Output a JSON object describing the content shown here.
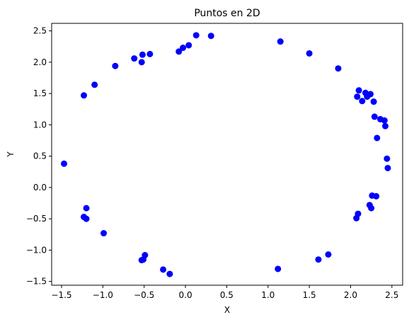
{
  "chart_data": {
    "type": "scatter",
    "title": "Puntos en 2D",
    "xlabel": "X",
    "ylabel": "Y",
    "xlim": [
      -1.62,
      2.63
    ],
    "ylim": [
      -1.56,
      2.62
    ],
    "xticks": [
      -1.5,
      -1.0,
      -0.5,
      0.0,
      0.5,
      1.0,
      1.5,
      2.0,
      2.5
    ],
    "xtick_labels": [
      "−1.5",
      "−1.0",
      "−0.5",
      "0.0",
      "0.5",
      "1.0",
      "1.5",
      "2.0",
      "2.5"
    ],
    "yticks": [
      -1.5,
      -1.0,
      -0.5,
      0.0,
      0.5,
      1.0,
      1.5,
      2.0,
      2.5
    ],
    "ytick_labels": [
      "−1.5",
      "−1.0",
      "−0.5",
      "0.0",
      "0.5",
      "1.0",
      "1.5",
      "2.0",
      "2.5"
    ],
    "grid": false,
    "color": "#0000ff",
    "points": [
      {
        "x": 0.13,
        "y": 2.43
      },
      {
        "x": 0.31,
        "y": 2.42
      },
      {
        "x": 0.04,
        "y": 2.27
      },
      {
        "x": -0.03,
        "y": 2.23
      },
      {
        "x": -0.08,
        "y": 2.17
      },
      {
        "x": -0.43,
        "y": 2.13
      },
      {
        "x": -0.52,
        "y": 2.12
      },
      {
        "x": -0.62,
        "y": 2.06
      },
      {
        "x": -0.53,
        "y": 2.0
      },
      {
        "x": -0.85,
        "y": 1.94
      },
      {
        "x": -1.1,
        "y": 1.64
      },
      {
        "x": -1.23,
        "y": 1.47
      },
      {
        "x": -1.47,
        "y": 0.38
      },
      {
        "x": -1.2,
        "y": -0.33
      },
      {
        "x": -1.23,
        "y": -0.47
      },
      {
        "x": -1.2,
        "y": -0.5
      },
      {
        "x": -0.99,
        "y": -0.73
      },
      {
        "x": -0.49,
        "y": -1.08
      },
      {
        "x": -0.51,
        "y": -1.15
      },
      {
        "x": -0.53,
        "y": -1.16
      },
      {
        "x": -0.27,
        "y": -1.31
      },
      {
        "x": -0.19,
        "y": -1.38
      },
      {
        "x": 1.12,
        "y": -1.3
      },
      {
        "x": 1.15,
        "y": 2.33
      },
      {
        "x": 1.5,
        "y": 2.14
      },
      {
        "x": 1.61,
        "y": -1.15
      },
      {
        "x": 1.73,
        "y": -1.07
      },
      {
        "x": 1.85,
        "y": 1.9
      },
      {
        "x": 2.07,
        "y": -0.49
      },
      {
        "x": 2.09,
        "y": -0.42
      },
      {
        "x": 2.08,
        "y": 1.45
      },
      {
        "x": 2.1,
        "y": 1.55
      },
      {
        "x": 2.14,
        "y": 1.38
      },
      {
        "x": 2.18,
        "y": 1.51
      },
      {
        "x": 2.2,
        "y": 1.45
      },
      {
        "x": 2.24,
        "y": 1.49
      },
      {
        "x": 2.28,
        "y": 1.37
      },
      {
        "x": 2.29,
        "y": 1.13
      },
      {
        "x": 2.23,
        "y": -0.28
      },
      {
        "x": 2.25,
        "y": -0.33
      },
      {
        "x": 2.26,
        "y": -0.13
      },
      {
        "x": 2.31,
        "y": -0.14
      },
      {
        "x": 2.32,
        "y": 0.79
      },
      {
        "x": 2.36,
        "y": 1.09
      },
      {
        "x": 2.41,
        "y": 1.07
      },
      {
        "x": 2.42,
        "y": 0.98
      },
      {
        "x": 2.44,
        "y": 0.46
      },
      {
        "x": 2.45,
        "y": 0.31
      }
    ]
  }
}
